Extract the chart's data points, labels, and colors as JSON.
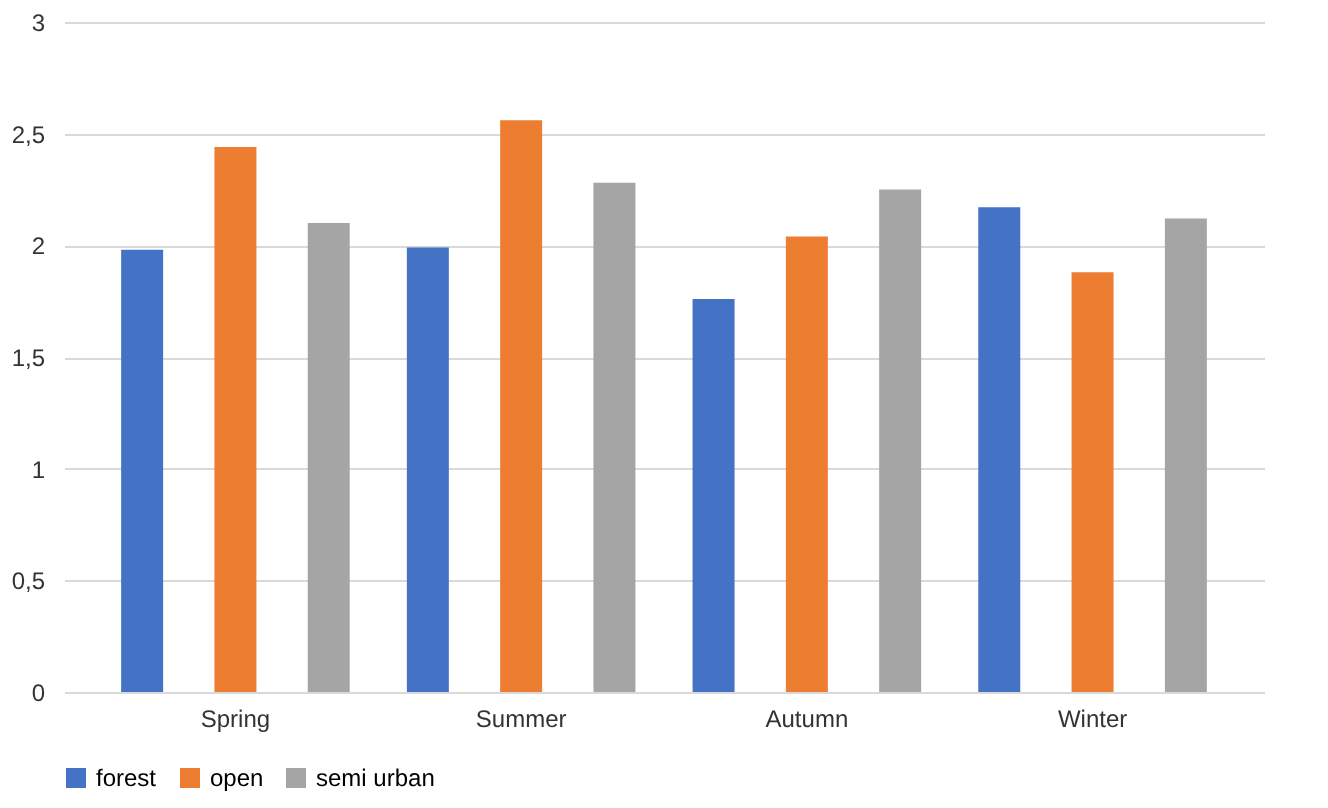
{
  "chart_data": {
    "type": "bar",
    "categories": [
      "Spring",
      "Summer",
      "Autumn",
      "Winter"
    ],
    "series": [
      {
        "name": "forest",
        "color": "#4472c4",
        "values": [
          1.98,
          1.99,
          1.76,
          2.17
        ]
      },
      {
        "name": "open",
        "color": "#ed7d31",
        "values": [
          2.44,
          2.56,
          2.04,
          1.88
        ]
      },
      {
        "name": "semi urban",
        "color": "#a5a5a5",
        "values": [
          2.1,
          2.28,
          2.25,
          2.12
        ]
      }
    ],
    "ylim": [
      0,
      3
    ],
    "yticks": [
      0,
      {
        "value": 0.5,
        "label": "0,5"
      },
      1,
      {
        "value": 1.5,
        "label": "1,5"
      },
      2,
      {
        "value": 2.5,
        "label": "2,5"
      },
      3
    ],
    "grid": "y",
    "legend": "bottom"
  }
}
